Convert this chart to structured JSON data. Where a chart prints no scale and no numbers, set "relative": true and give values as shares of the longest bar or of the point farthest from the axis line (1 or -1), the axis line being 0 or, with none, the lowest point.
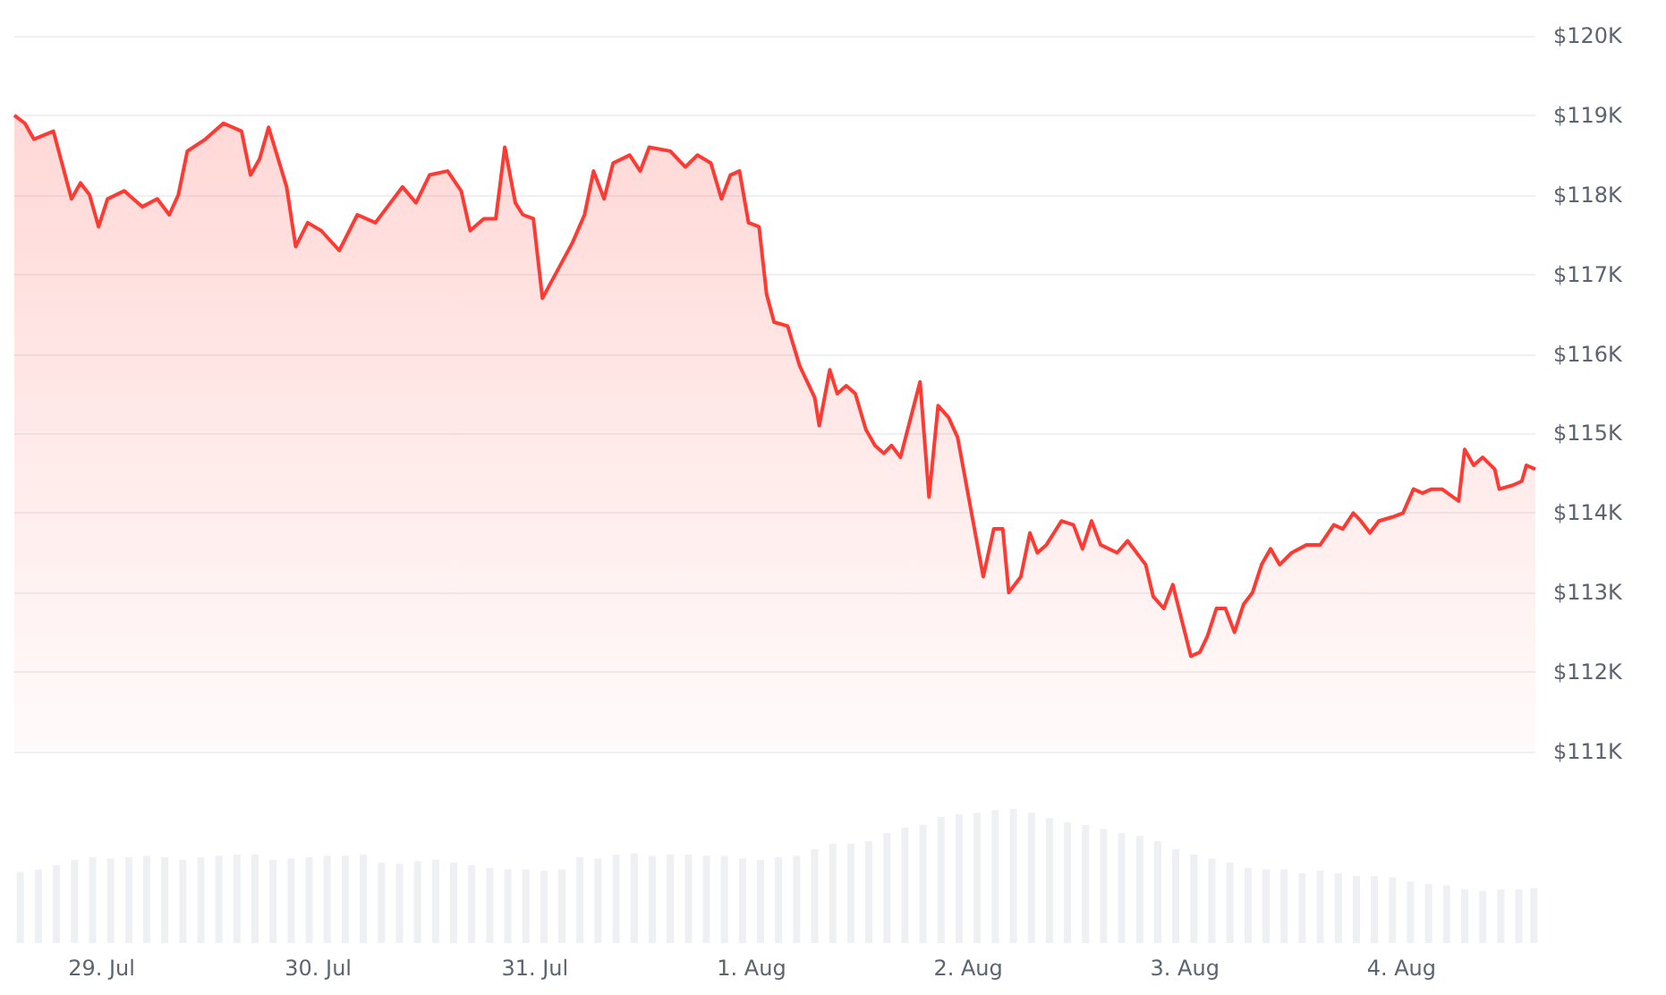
{
  "chart_data": [
    {
      "type": "area",
      "color": "#ff3a33",
      "grid": "y",
      "marker": "none",
      "tick_labels": "y",
      "xlim": [
        "--07-28T14:20",
        "--08-04T14:50"
      ],
      "xticks": [
        {
          "value": "--07-29",
          "label": "29. Jul"
        },
        {
          "value": "--07-30",
          "label": "30. Jul"
        },
        {
          "value": "--07-31",
          "label": "31. Jul"
        },
        {
          "value": "--08-01",
          "label": "1. Aug"
        },
        {
          "value": "--08-02",
          "label": "2. Aug"
        },
        {
          "value": "--08-03",
          "label": "3. Aug"
        },
        {
          "value": "--08-04",
          "label": "4. Aug"
        }
      ],
      "ylim": [
        111,
        120
      ],
      "yticks": [
        {
          "value": 111,
          "label": "$111K"
        },
        {
          "value": 112,
          "label": "$112K"
        },
        {
          "value": 113,
          "label": "$113K"
        },
        {
          "value": 114,
          "label": "$114K"
        },
        {
          "value": 115,
          "label": "$115K"
        },
        {
          "value": 116,
          "label": "$116K"
        },
        {
          "value": 117,
          "label": "$117K"
        },
        {
          "value": 118,
          "label": "$118K"
        },
        {
          "value": 119,
          "label": "$119K"
        },
        {
          "value": 120,
          "label": "$120K"
        }
      ],
      "x": [
        "--07-28T14:20",
        "--07-28T15:30",
        "--07-28T16:30",
        "--07-28T18:40",
        "--07-28T20:40",
        "--07-28T21:40",
        "--07-28T22:40",
        "--07-28T23:40",
        "--07-29T00:40",
        "--07-29T02:30",
        "--07-29T04:30",
        "--07-29T06:10",
        "--07-29T07:30",
        "--07-29T08:30",
        "--07-29T09:30",
        "--07-29T11:30",
        "--07-29T13:30",
        "--07-29T15:30",
        "--07-29T16:30",
        "--07-29T17:30",
        "--07-29T18:30",
        "--07-29T20:30",
        "--07-29T21:30",
        "--07-29T22:50",
        "--07-30T00:20",
        "--07-30T02:20",
        "--07-30T04:20",
        "--07-30T06:20",
        "--07-30T09:20",
        "--07-30T10:50",
        "--07-30T12:20",
        "--07-30T14:20",
        "--07-30T15:50",
        "--07-30T16:50",
        "--07-30T18:20",
        "--07-30T19:40",
        "--07-30T20:40",
        "--07-30T21:50",
        "--07-30T22:40",
        "--07-30T23:50",
        "--07-31T00:50",
        "--07-31T04:10",
        "--07-31T05:30",
        "--07-31T06:30",
        "--07-31T07:40",
        "--07-31T08:40",
        "--07-31T10:30",
        "--07-31T11:40",
        "--07-31T12:40",
        "--07-31T15:00",
        "--07-31T16:40",
        "--07-31T18:00",
        "--07-31T19:30",
        "--07-31T20:40",
        "--07-31T21:40",
        "--07-31T22:40",
        "--07-31T23:40",
        "--08-01T00:50",
        "--08-01T01:40",
        "--08-01T02:30",
        "--08-01T04:00",
        "--08-01T05:20",
        "--08-01T07:00",
        "--08-01T07:30",
        "--08-01T08:40",
        "--08-01T09:30",
        "--08-01T10:30",
        "--08-01T11:30",
        "--08-01T12:40",
        "--08-01T13:40",
        "--08-01T14:40",
        "--08-01T15:30",
        "--08-01T16:30",
        "--08-01T18:40",
        "--08-01T19:40",
        "--08-01T20:40",
        "--08-01T21:50",
        "--08-01T22:50",
        "--08-02T01:40",
        "--08-02T02:50",
        "--08-02T03:50",
        "--08-02T04:30",
        "--08-02T05:50",
        "--08-02T06:50",
        "--08-02T07:40",
        "--08-02T08:40",
        "--08-02T10:20",
        "--08-02T11:40",
        "--08-02T12:40",
        "--08-02T13:40",
        "--08-02T14:40",
        "--08-02T16:30",
        "--08-02T17:40",
        "--08-02T19:40",
        "--08-02T20:30",
        "--08-02T21:40",
        "--08-02T22:40",
        "--08-03T00:40",
        "--08-03T01:40",
        "--08-03T02:30",
        "--08-03T03:30",
        "--08-03T04:30",
        "--08-03T05:30",
        "--08-03T06:30",
        "--08-03T07:30",
        "--08-03T08:30",
        "--08-03T09:30",
        "--08-03T10:30",
        "--08-03T11:50",
        "--08-03T13:30",
        "--08-03T15:00",
        "--08-03T16:30",
        "--08-03T17:30",
        "--08-03T18:40",
        "--08-03T19:30",
        "--08-03T20:30",
        "--08-03T21:30",
        "--08-03T23:00",
        "--08-04T00:10",
        "--08-04T01:20",
        "--08-04T02:20",
        "--08-04T03:20",
        "--08-04T04:30",
        "--08-04T06:20",
        "--08-04T07:00",
        "--08-04T08:00",
        "--08-04T09:00",
        "--08-04T10:20",
        "--08-04T10:50",
        "--08-04T12:20",
        "--08-04T13:20",
        "--08-04T13:50",
        "--08-04T14:50"
      ],
      "values": [
        119.0,
        118.9,
        118.7,
        118.8,
        117.95,
        118.15,
        118.0,
        117.6,
        117.95,
        118.05,
        117.85,
        117.95,
        117.75,
        118.0,
        118.55,
        118.7,
        118.9,
        118.8,
        118.25,
        118.45,
        118.85,
        118.1,
        117.35,
        117.65,
        117.55,
        117.3,
        117.75,
        117.65,
        118.1,
        117.9,
        118.25,
        118.3,
        118.05,
        117.55,
        117.7,
        117.7,
        118.6,
        117.9,
        117.75,
        117.7,
        116.7,
        117.4,
        117.75,
        118.3,
        117.95,
        118.4,
        118.5,
        118.3,
        118.6,
        118.55,
        118.35,
        118.5,
        118.4,
        117.95,
        118.25,
        118.3,
        117.65,
        117.6,
        116.75,
        116.4,
        116.35,
        115.85,
        115.45,
        115.1,
        115.8,
        115.5,
        115.6,
        115.5,
        115.05,
        114.85,
        114.75,
        114.85,
        114.7,
        115.65,
        114.2,
        115.35,
        115.2,
        114.95,
        113.2,
        113.8,
        113.8,
        113.0,
        113.2,
        113.75,
        113.5,
        113.6,
        113.9,
        113.85,
        113.55,
        113.9,
        113.6,
        113.5,
        113.65,
        113.35,
        112.95,
        112.8,
        113.1,
        112.2,
        112.25,
        112.45,
        112.8,
        112.8,
        112.5,
        112.85,
        113.0,
        113.35,
        113.55,
        113.35,
        113.5,
        113.6,
        113.6,
        113.85,
        113.8,
        114.0,
        113.9,
        113.75,
        113.9,
        113.95,
        114.0,
        114.3,
        114.25,
        114.3,
        114.3,
        114.15,
        114.8,
        114.6,
        114.7,
        114.55,
        114.3,
        114.35,
        114.4,
        114.6,
        114.55
      ]
    },
    {
      "type": "bar",
      "color": "#eef0f3",
      "relative": true,
      "tick_labels": "x",
      "xlim": [
        "--07-28T14:20",
        "--08-04T14:50"
      ],
      "xticks": [
        {
          "value": "--07-29",
          "label": "29. Jul"
        },
        {
          "value": "--07-30",
          "label": "30. Jul"
        },
        {
          "value": "--07-31",
          "label": "31. Jul"
        },
        {
          "value": "--08-01",
          "label": "1. Aug"
        },
        {
          "value": "--08-02",
          "label": "2. Aug"
        },
        {
          "value": "--08-03",
          "label": "3. Aug"
        },
        {
          "value": "--08-04",
          "label": "4. Aug"
        }
      ],
      "x": [
        "--07-28T15:00",
        "--07-28T17:00",
        "--07-28T19:00",
        "--07-28T21:00",
        "--07-28T23:00",
        "--07-29T01:00",
        "--07-29T03:00",
        "--07-29T05:00",
        "--07-29T07:00",
        "--07-29T09:00",
        "--07-29T11:00",
        "--07-29T13:00",
        "--07-29T15:00",
        "--07-29T17:00",
        "--07-29T19:00",
        "--07-29T21:00",
        "--07-29T23:00",
        "--07-30T01:00",
        "--07-30T03:00",
        "--07-30T05:00",
        "--07-30T07:00",
        "--07-30T09:00",
        "--07-30T11:00",
        "--07-30T13:00",
        "--07-30T15:00",
        "--07-30T17:00",
        "--07-30T19:00",
        "--07-30T21:00",
        "--07-30T23:00",
        "--07-31T01:00",
        "--07-31T03:00",
        "--07-31T05:00",
        "--07-31T07:00",
        "--07-31T09:00",
        "--07-31T11:00",
        "--07-31T13:00",
        "--07-31T15:00",
        "--07-31T17:00",
        "--07-31T19:00",
        "--07-31T21:00",
        "--07-31T23:00",
        "--08-01T01:00",
        "--08-01T03:00",
        "--08-01T05:00",
        "--08-01T07:00",
        "--08-01T09:00",
        "--08-01T11:00",
        "--08-01T13:00",
        "--08-01T15:00",
        "--08-01T17:00",
        "--08-01T19:00",
        "--08-01T21:00",
        "--08-01T23:00",
        "--08-02T01:00",
        "--08-02T03:00",
        "--08-02T05:00",
        "--08-02T07:00",
        "--08-02T09:00",
        "--08-02T11:00",
        "--08-02T13:00",
        "--08-02T15:00",
        "--08-02T17:00",
        "--08-02T19:00",
        "--08-02T21:00",
        "--08-02T23:00",
        "--08-03T01:00",
        "--08-03T03:00",
        "--08-03T05:00",
        "--08-03T07:00",
        "--08-03T09:00",
        "--08-03T11:00",
        "--08-03T13:00",
        "--08-03T15:00",
        "--08-03T17:00",
        "--08-03T19:00",
        "--08-03T21:00",
        "--08-03T23:00",
        "--08-04T01:00",
        "--08-04T03:00",
        "--08-04T05:00",
        "--08-04T07:00",
        "--08-04T09:00",
        "--08-04T11:00",
        "--08-04T13:00",
        "--08-04T14:40"
      ],
      "values": [
        0.53,
        0.55,
        0.58,
        0.62,
        0.64,
        0.63,
        0.64,
        0.65,
        0.64,
        0.62,
        0.64,
        0.65,
        0.66,
        0.66,
        0.62,
        0.63,
        0.64,
        0.65,
        0.65,
        0.66,
        0.6,
        0.59,
        0.61,
        0.62,
        0.6,
        0.58,
        0.56,
        0.55,
        0.55,
        0.54,
        0.55,
        0.64,
        0.63,
        0.66,
        0.67,
        0.65,
        0.66,
        0.66,
        0.65,
        0.65,
        0.63,
        0.62,
        0.64,
        0.65,
        0.7,
        0.74,
        0.74,
        0.76,
        0.82,
        0.86,
        0.88,
        0.94,
        0.96,
        0.97,
        0.99,
        1.0,
        0.97,
        0.93,
        0.9,
        0.88,
        0.85,
        0.82,
        0.8,
        0.76,
        0.7,
        0.66,
        0.63,
        0.6,
        0.56,
        0.55,
        0.55,
        0.52,
        0.54,
        0.52,
        0.5,
        0.5,
        0.49,
        0.46,
        0.44,
        0.43,
        0.4,
        0.39,
        0.4,
        0.4,
        0.41
      ]
    }
  ]
}
